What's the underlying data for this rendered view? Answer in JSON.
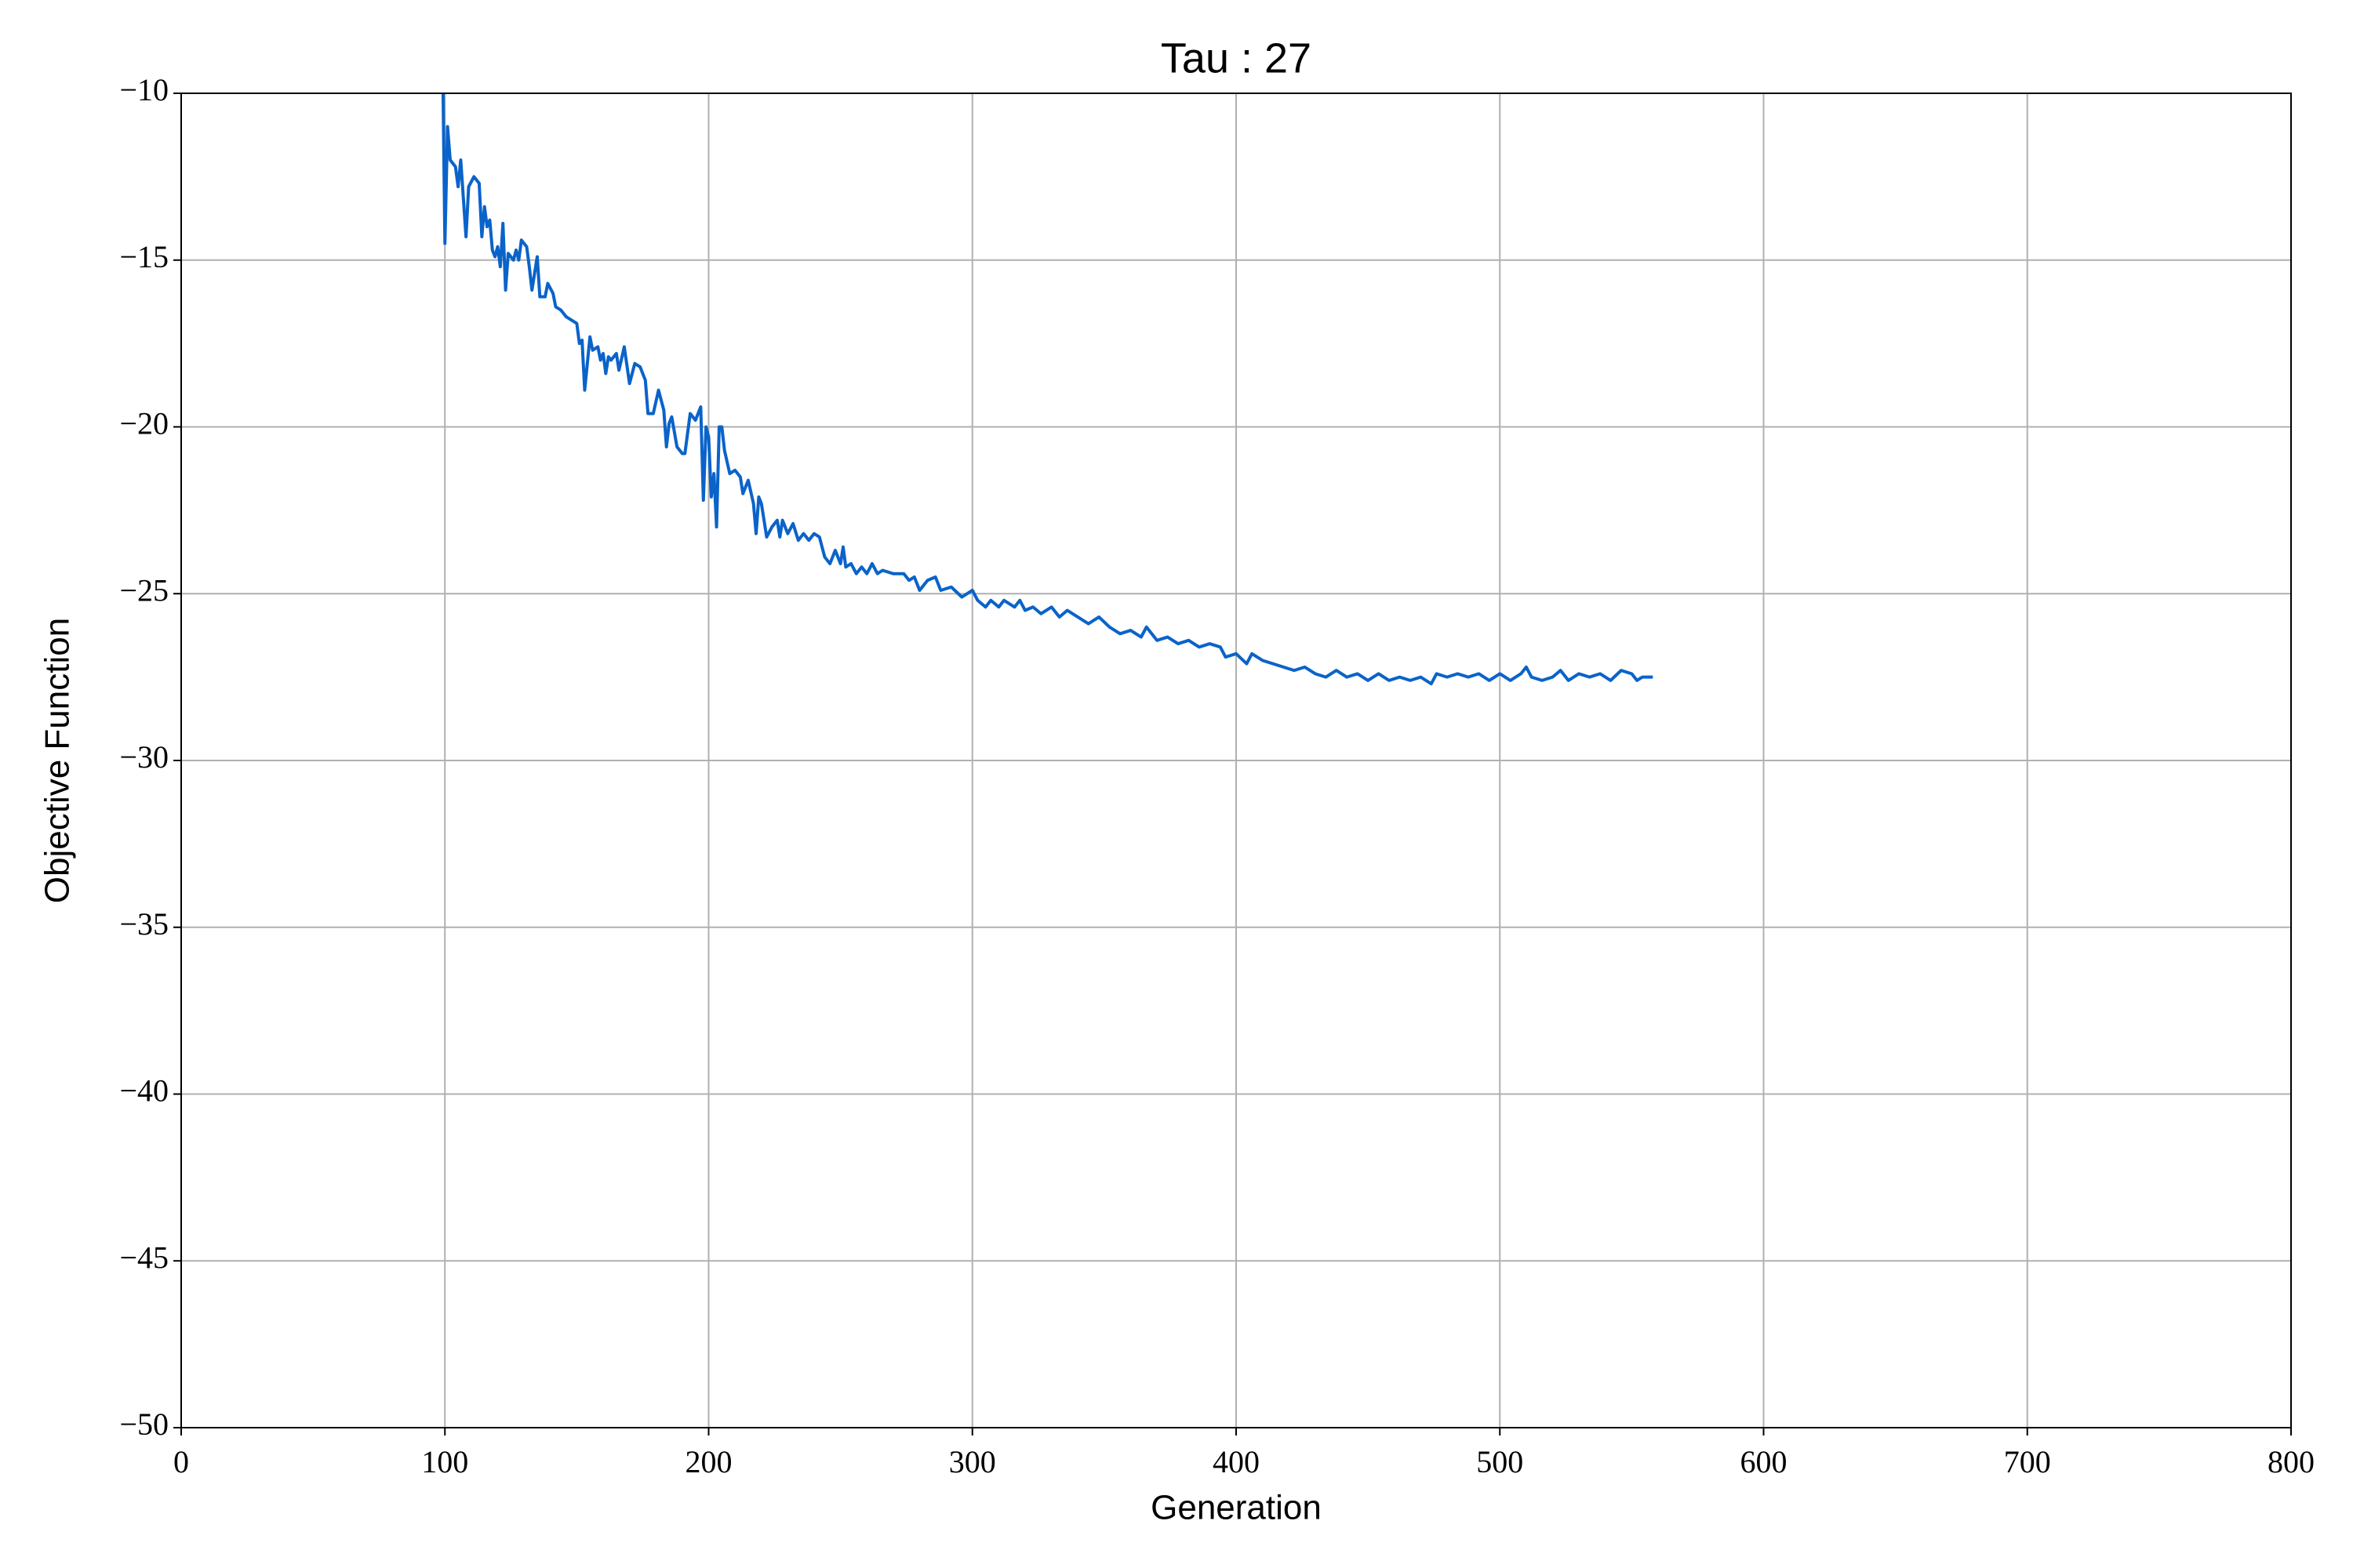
{
  "chart_data": {
    "type": "line",
    "title": "Tau : 27",
    "x_label": "Generation",
    "y_label": "Objective Function",
    "color": "#0a63c9",
    "grid": true,
    "xlim": [
      0,
      800
    ],
    "xticks": [
      0,
      100,
      200,
      300,
      400,
      500,
      600,
      700,
      800
    ],
    "ylim": [
      -50,
      -10
    ],
    "yticks": [
      {
        "value": -50,
        "label": "−50"
      },
      {
        "value": -45,
        "label": "−45"
      },
      {
        "value": -40,
        "label": "−40"
      },
      {
        "value": -35,
        "label": "−35"
      },
      {
        "value": -30,
        "label": "−30"
      },
      {
        "value": -25,
        "label": "−25"
      },
      {
        "value": -20,
        "label": "−20"
      },
      {
        "value": -15,
        "label": "−15"
      },
      {
        "value": -10,
        "label": "−10"
      }
    ],
    "x": [
      99,
      100,
      101,
      102,
      104,
      105,
      106,
      108,
      109,
      111,
      113,
      114,
      115,
      116,
      117,
      118,
      119,
      120,
      121,
      122,
      123,
      124,
      126,
      127,
      128,
      129,
      131,
      132,
      133,
      135,
      136,
      138,
      139,
      141,
      142,
      144,
      146,
      148,
      150,
      151,
      152,
      153,
      155,
      156,
      158,
      159,
      160,
      161,
      162,
      163,
      165,
      166,
      168,
      170,
      172,
      174,
      176,
      177,
      179,
      181,
      183,
      184,
      185,
      186,
      188,
      190,
      191,
      193,
      195,
      197,
      198,
      199,
      200,
      201,
      202,
      203,
      204,
      205,
      206,
      208,
      210,
      212,
      213,
      215,
      217,
      218,
      219,
      220,
      222,
      224,
      226,
      227,
      228,
      230,
      232,
      234,
      236,
      238,
      240,
      242,
      244,
      246,
      248,
      250,
      251,
      252,
      254,
      256,
      258,
      260,
      262,
      264,
      266,
      270,
      274,
      276,
      278,
      280,
      283,
      286,
      288,
      292,
      296,
      300,
      302,
      305,
      307,
      310,
      312,
      316,
      318,
      320,
      323,
      326,
      330,
      333,
      336,
      340,
      344,
      348,
      352,
      356,
      360,
      364,
      366,
      370,
      374,
      378,
      382,
      386,
      390,
      394,
      396,
      400,
      404,
      406,
      410,
      414,
      418,
      422,
      426,
      430,
      434,
      438,
      442,
      446,
      450,
      454,
      458,
      462,
      466,
      470,
      474,
      476,
      480,
      484,
      488,
      492,
      496,
      500,
      504,
      508,
      510,
      512,
      516,
      520,
      523,
      526,
      530,
      534,
      538,
      542,
      546,
      550,
      552,
      554,
      558
    ],
    "values": [
      -8,
      -14.5,
      -11,
      -12,
      -12.2,
      -12.8,
      -12,
      -14.3,
      -12.8,
      -12.5,
      -12.7,
      -14.3,
      -13.4,
      -14,
      -13.8,
      -14.7,
      -14.9,
      -14.6,
      -15.2,
      -13.9,
      -15.9,
      -14.8,
      -15,
      -14.7,
      -15,
      -14.4,
      -14.6,
      -15.2,
      -15.9,
      -14.9,
      -16.1,
      -16.1,
      -15.7,
      -16,
      -16.4,
      -16.5,
      -16.7,
      -16.8,
      -16.9,
      -17.5,
      -17.4,
      -18.9,
      -17.3,
      -17.7,
      -17.6,
      -18,
      -17.8,
      -18.4,
      -17.9,
      -18,
      -17.8,
      -18.3,
      -17.6,
      -18.7,
      -18.1,
      -18.2,
      -18.6,
      -19.6,
      -19.6,
      -18.9,
      -19.5,
      -20.6,
      -19.9,
      -19.7,
      -20.6,
      -20.8,
      -20.8,
      -19.6,
      -19.8,
      -19.4,
      -22.2,
      -20,
      -20.3,
      -22.1,
      -21.4,
      -23,
      -20,
      -20,
      -20.7,
      -21.4,
      -21.3,
      -21.5,
      -22,
      -21.6,
      -22.3,
      -23.2,
      -22.1,
      -22.3,
      -23.3,
      -23,
      -22.8,
      -23.3,
      -22.8,
      -23.2,
      -22.9,
      -23.4,
      -23.2,
      -23.4,
      -23.2,
      -23.3,
      -23.9,
      -24.1,
      -23.7,
      -24.1,
      -23.6,
      -24.2,
      -24.1,
      -24.4,
      -24.2,
      -24.4,
      -24.1,
      -24.4,
      -24.3,
      -24.4,
      -24.4,
      -24.6,
      -24.5,
      -24.9,
      -24.6,
      -24.5,
      -24.9,
      -24.8,
      -25.1,
      -24.9,
      -25.2,
      -25.4,
      -25.2,
      -25.4,
      -25.2,
      -25.4,
      -25.2,
      -25.5,
      -25.4,
      -25.6,
      -25.4,
      -25.7,
      -25.5,
      -25.7,
      -25.9,
      -25.7,
      -26,
      -26.2,
      -26.1,
      -26.3,
      -26,
      -26.4,
      -26.3,
      -26.5,
      -26.4,
      -26.6,
      -26.5,
      -26.6,
      -26.9,
      -26.8,
      -27.1,
      -26.8,
      -27,
      -27.1,
      -27.2,
      -27.3,
      -27.2,
      -27.4,
      -27.5,
      -27.3,
      -27.5,
      -27.4,
      -27.6,
      -27.4,
      -27.6,
      -27.5,
      -27.6,
      -27.5,
      -27.7,
      -27.4,
      -27.5,
      -27.4,
      -27.5,
      -27.4,
      -27.6,
      -27.4,
      -27.6,
      -27.4,
      -27.2,
      -27.5,
      -27.6,
      -27.5,
      -27.3,
      -27.6,
      -27.4,
      -27.5,
      -27.4,
      -27.6,
      -27.3,
      -27.4,
      -27.6,
      -27.5,
      -27.5
    ]
  }
}
